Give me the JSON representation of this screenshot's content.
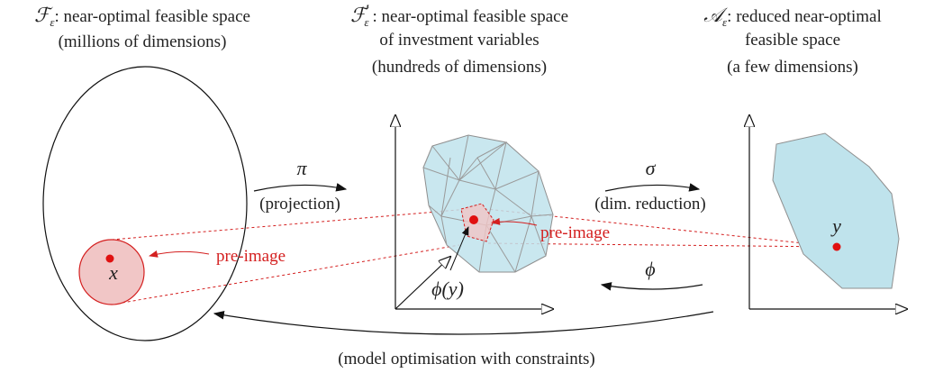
{
  "left": {
    "symbol": "ℱ",
    "sub": "ε",
    "title": ": near-optimal feasible space",
    "subtitle": "(millions of dimensions)",
    "point": "x",
    "preimage": "pre-image"
  },
  "middle": {
    "symbol": "ℱ",
    "prime": "′",
    "sub": "ε",
    "title": ": near-optimal feasible space",
    "title2": "of investment variables",
    "subtitle": "(hundreds of dimensions)",
    "point": "ϕ(y)",
    "preimage": "pre-image"
  },
  "right": {
    "symbol": "𝒜",
    "sub": "ε",
    "title": ": reduced near-optimal",
    "title2": "feasible space",
    "subtitle": "(a few dimensions)",
    "point": "y"
  },
  "arrows": {
    "projection_symbol": "π",
    "projection": "(projection)",
    "reduction_symbol": "σ",
    "reduction": "(dim. reduction)",
    "inverse_symbol": "ϕ",
    "optimisation": "(model optimisation with constraints)"
  }
}
